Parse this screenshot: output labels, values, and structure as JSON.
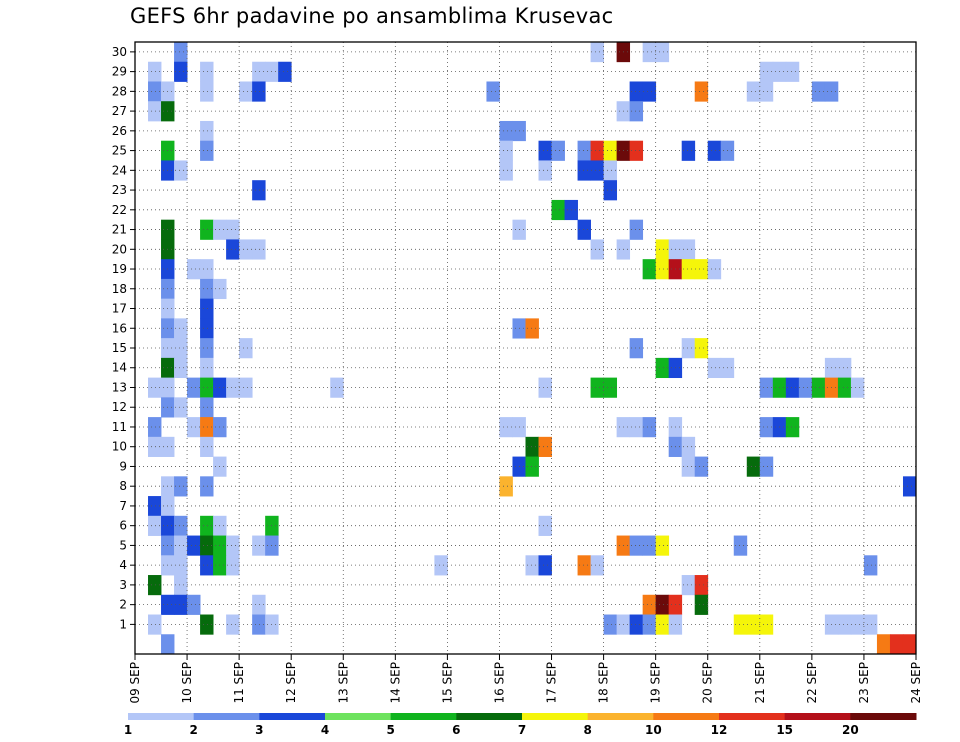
{
  "title": "GEFS 6hr padavine po ansamblima Krusevac",
  "chart_data": {
    "type": "heatmap",
    "title": "GEFS 6hr padavine po ansamblima Krusevac",
    "xlabel": "",
    "ylabel": "",
    "x_range_steps": [
      0,
      60
    ],
    "x_ticks": [
      {
        "step": 0,
        "label": "09 SEP"
      },
      {
        "step": 4,
        "label": "10 SEP"
      },
      {
        "step": 8,
        "label": "11 SEP"
      },
      {
        "step": 12,
        "label": "12 SEP"
      },
      {
        "step": 16,
        "label": "13 SEP"
      },
      {
        "step": 20,
        "label": "14 SEP"
      },
      {
        "step": 24,
        "label": "15 SEP"
      },
      {
        "step": 28,
        "label": "16 SEP"
      },
      {
        "step": 32,
        "label": "17 SEP"
      },
      {
        "step": 36,
        "label": "18 SEP"
      },
      {
        "step": 40,
        "label": "19 SEP"
      },
      {
        "step": 44,
        "label": "20 SEP"
      },
      {
        "step": 48,
        "label": "21 SEP"
      },
      {
        "step": 52,
        "label": "22 SEP"
      },
      {
        "step": 56,
        "label": "23 SEP"
      },
      {
        "step": 60,
        "label": "24 SEP"
      }
    ],
    "y_range_members": [
      0,
      30
    ],
    "y_ticks": [
      1,
      2,
      3,
      4,
      5,
      6,
      7,
      8,
      9,
      10,
      11,
      12,
      13,
      14,
      15,
      16,
      17,
      18,
      19,
      20,
      21,
      22,
      23,
      24,
      25,
      26,
      27,
      28,
      29,
      30
    ],
    "grid": true,
    "colorbar": {
      "labels": [
        "1",
        "2",
        "3",
        "4",
        "5",
        "6",
        "7",
        "8",
        "10",
        "12",
        "15",
        "20"
      ],
      "colors": [
        "#b3c6f7",
        "#6b90eb",
        "#1a47d9",
        "#6ee35e",
        "#10b41e",
        "#066b0c",
        "#f5f50a",
        "#fbb32e",
        "#f67a14",
        "#e3301d",
        "#b4101a",
        "#6b0a0a"
      ]
    },
    "cells": [
      [
        3,
        30,
        1
      ],
      [
        35,
        30,
        0
      ],
      [
        37,
        30,
        11
      ],
      [
        39,
        30,
        0
      ],
      [
        40,
        30,
        0
      ],
      [
        1,
        29,
        0
      ],
      [
        3,
        29,
        2
      ],
      [
        5,
        29,
        0
      ],
      [
        9,
        29,
        0
      ],
      [
        10,
        29,
        0
      ],
      [
        11,
        29,
        2
      ],
      [
        48,
        29,
        0
      ],
      [
        49,
        29,
        0
      ],
      [
        50,
        29,
        0
      ],
      [
        1,
        28,
        1
      ],
      [
        2,
        28,
        0
      ],
      [
        5,
        28,
        0
      ],
      [
        8,
        28,
        0
      ],
      [
        9,
        28,
        2
      ],
      [
        27,
        28,
        1
      ],
      [
        38,
        28,
        2
      ],
      [
        39,
        28,
        2
      ],
      [
        43,
        28,
        8
      ],
      [
        47,
        28,
        0
      ],
      [
        48,
        28,
        0
      ],
      [
        52,
        28,
        1
      ],
      [
        53,
        28,
        1
      ],
      [
        1,
        27,
        0
      ],
      [
        2,
        27,
        5
      ],
      [
        37,
        27,
        0
      ],
      [
        38,
        27,
        1
      ],
      [
        5,
        26,
        0
      ],
      [
        28,
        26,
        1
      ],
      [
        29,
        26,
        1
      ],
      [
        28,
        25,
        0
      ],
      [
        2,
        25,
        4
      ],
      [
        5,
        25,
        1
      ],
      [
        31,
        25,
        2
      ],
      [
        32,
        25,
        1
      ],
      [
        34,
        25,
        1
      ],
      [
        35,
        25,
        9
      ],
      [
        36,
        25,
        6
      ],
      [
        37,
        25,
        11
      ],
      [
        38,
        25,
        9
      ],
      [
        42,
        25,
        2
      ],
      [
        44,
        25,
        2
      ],
      [
        45,
        25,
        1
      ],
      [
        2,
        24,
        2
      ],
      [
        3,
        24,
        0
      ],
      [
        28,
        24,
        0
      ],
      [
        31,
        24,
        0
      ],
      [
        34,
        24,
        2
      ],
      [
        35,
        24,
        2
      ],
      [
        36,
        24,
        0
      ],
      [
        9,
        23,
        2
      ],
      [
        36,
        23,
        2
      ],
      [
        32,
        22,
        4
      ],
      [
        33,
        22,
        2
      ],
      [
        2,
        21,
        5
      ],
      [
        5,
        21,
        4
      ],
      [
        6,
        21,
        0
      ],
      [
        7,
        21,
        0
      ],
      [
        29,
        21,
        0
      ],
      [
        34,
        21,
        2
      ],
      [
        38,
        21,
        1
      ],
      [
        2,
        20,
        5
      ],
      [
        7,
        20,
        2
      ],
      [
        8,
        20,
        0
      ],
      [
        9,
        20,
        0
      ],
      [
        35,
        20,
        0
      ],
      [
        37,
        20,
        0
      ],
      [
        40,
        20,
        6
      ],
      [
        41,
        20,
        0
      ],
      [
        42,
        20,
        0
      ],
      [
        2,
        19,
        2
      ],
      [
        4,
        19,
        0
      ],
      [
        5,
        19,
        0
      ],
      [
        39,
        19,
        4
      ],
      [
        40,
        19,
        6
      ],
      [
        41,
        19,
        10
      ],
      [
        42,
        19,
        6
      ],
      [
        43,
        19,
        6
      ],
      [
        44,
        19,
        0
      ],
      [
        2,
        18,
        1
      ],
      [
        5,
        18,
        1
      ],
      [
        6,
        18,
        0
      ],
      [
        2,
        17,
        0
      ],
      [
        5,
        17,
        2
      ],
      [
        2,
        16,
        1
      ],
      [
        3,
        16,
        0
      ],
      [
        5,
        16,
        2
      ],
      [
        29,
        16,
        1
      ],
      [
        30,
        16,
        8
      ],
      [
        2,
        15,
        0
      ],
      [
        3,
        15,
        0
      ],
      [
        5,
        15,
        1
      ],
      [
        8,
        15,
        0
      ],
      [
        38,
        15,
        1
      ],
      [
        42,
        15,
        0
      ],
      [
        43,
        15,
        6
      ],
      [
        2,
        14,
        5
      ],
      [
        3,
        14,
        0
      ],
      [
        5,
        14,
        0
      ],
      [
        40,
        14,
        4
      ],
      [
        41,
        14,
        2
      ],
      [
        44,
        14,
        0
      ],
      [
        45,
        14,
        0
      ],
      [
        53,
        14,
        0
      ],
      [
        54,
        14,
        0
      ],
      [
        1,
        13,
        0
      ],
      [
        2,
        13,
        0
      ],
      [
        4,
        13,
        1
      ],
      [
        5,
        13,
        4
      ],
      [
        6,
        13,
        2
      ],
      [
        7,
        13,
        0
      ],
      [
        8,
        13,
        0
      ],
      [
        15,
        13,
        0
      ],
      [
        31,
        13,
        0
      ],
      [
        35,
        13,
        4
      ],
      [
        36,
        13,
        4
      ],
      [
        48,
        13,
        1
      ],
      [
        49,
        13,
        4
      ],
      [
        50,
        13,
        2
      ],
      [
        51,
        13,
        1
      ],
      [
        52,
        13,
        4
      ],
      [
        53,
        13,
        8
      ],
      [
        54,
        13,
        4
      ],
      [
        55,
        13,
        0
      ],
      [
        2,
        12,
        1
      ],
      [
        3,
        12,
        0
      ],
      [
        5,
        12,
        1
      ],
      [
        1,
        11,
        1
      ],
      [
        4,
        11,
        0
      ],
      [
        5,
        11,
        8
      ],
      [
        6,
        11,
        1
      ],
      [
        28,
        11,
        0
      ],
      [
        29,
        11,
        0
      ],
      [
        37,
        11,
        0
      ],
      [
        38,
        11,
        0
      ],
      [
        39,
        11,
        1
      ],
      [
        41,
        11,
        0
      ],
      [
        48,
        11,
        1
      ],
      [
        49,
        11,
        2
      ],
      [
        50,
        11,
        4
      ],
      [
        1,
        10,
        0
      ],
      [
        2,
        10,
        0
      ],
      [
        5,
        10,
        0
      ],
      [
        30,
        10,
        5
      ],
      [
        31,
        10,
        8
      ],
      [
        41,
        10,
        1
      ],
      [
        42,
        10,
        0
      ],
      [
        6,
        9,
        0
      ],
      [
        29,
        9,
        2
      ],
      [
        30,
        9,
        4
      ],
      [
        42,
        9,
        0
      ],
      [
        43,
        9,
        1
      ],
      [
        47,
        9,
        5
      ],
      [
        48,
        9,
        1
      ],
      [
        2,
        8,
        0
      ],
      [
        3,
        8,
        1
      ],
      [
        5,
        8,
        1
      ],
      [
        28,
        8,
        7
      ],
      [
        59,
        8,
        2
      ],
      [
        1,
        7,
        2
      ],
      [
        2,
        7,
        0
      ],
      [
        1,
        6,
        0
      ],
      [
        2,
        6,
        2
      ],
      [
        3,
        6,
        1
      ],
      [
        5,
        6,
        4
      ],
      [
        6,
        6,
        0
      ],
      [
        10,
        6,
        4
      ],
      [
        31,
        6,
        0
      ],
      [
        2,
        5,
        1
      ],
      [
        3,
        5,
        0
      ],
      [
        4,
        5,
        2
      ],
      [
        5,
        5,
        5
      ],
      [
        6,
        5,
        4
      ],
      [
        7,
        5,
        0
      ],
      [
        9,
        5,
        0
      ],
      [
        10,
        5,
        1
      ],
      [
        37,
        5,
        8
      ],
      [
        38,
        5,
        1
      ],
      [
        39,
        5,
        1
      ],
      [
        40,
        5,
        6
      ],
      [
        46,
        5,
        1
      ],
      [
        2,
        4,
        0
      ],
      [
        3,
        4,
        0
      ],
      [
        5,
        4,
        2
      ],
      [
        6,
        4,
        4
      ],
      [
        7,
        4,
        0
      ],
      [
        23,
        4,
        0
      ],
      [
        30,
        4,
        0
      ],
      [
        31,
        4,
        2
      ],
      [
        34,
        4,
        8
      ],
      [
        35,
        4,
        0
      ],
      [
        56,
        4,
        1
      ],
      [
        1,
        3,
        5
      ],
      [
        3,
        3,
        0
      ],
      [
        42,
        3,
        0
      ],
      [
        43,
        3,
        9
      ],
      [
        2,
        2,
        2
      ],
      [
        3,
        2,
        2
      ],
      [
        4,
        2,
        1
      ],
      [
        9,
        2,
        0
      ],
      [
        39,
        2,
        8
      ],
      [
        40,
        2,
        11
      ],
      [
        41,
        2,
        9
      ],
      [
        43,
        2,
        5
      ],
      [
        1,
        1,
        0
      ],
      [
        5,
        1,
        5
      ],
      [
        7,
        1,
        0
      ],
      [
        9,
        1,
        1
      ],
      [
        10,
        1,
        0
      ],
      [
        36,
        1,
        1
      ],
      [
        37,
        1,
        0
      ],
      [
        38,
        1,
        2
      ],
      [
        39,
        1,
        1
      ],
      [
        40,
        1,
        6
      ],
      [
        41,
        1,
        0
      ],
      [
        46,
        1,
        6
      ],
      [
        47,
        1,
        6
      ],
      [
        48,
        1,
        6
      ],
      [
        53,
        1,
        0
      ],
      [
        54,
        1,
        0
      ],
      [
        55,
        1,
        0
      ],
      [
        56,
        1,
        0
      ],
      [
        2,
        0,
        1
      ],
      [
        57,
        0,
        8
      ],
      [
        58,
        0,
        9
      ],
      [
        59,
        0,
        9
      ]
    ]
  }
}
